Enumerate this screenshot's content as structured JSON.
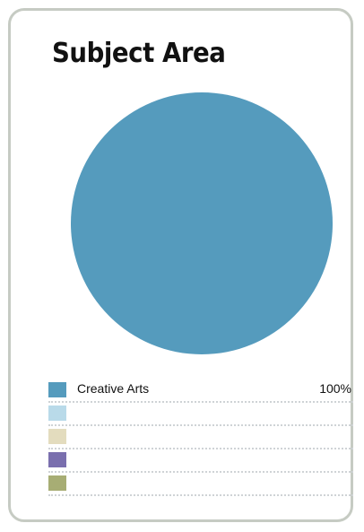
{
  "card": {
    "title": "Subject Area"
  },
  "colors": {
    "border": "#c6cbc3",
    "dots": "#cfd3d6"
  },
  "chart_data": {
    "type": "pie",
    "title": "Subject Area",
    "slices": [
      {
        "label": "Creative Arts",
        "value": 100,
        "value_label": "100%",
        "color": "#559bbd"
      }
    ],
    "legend": [
      {
        "label": "Creative Arts",
        "value_label": "100%",
        "color": "#559bbd"
      },
      {
        "label": "",
        "value_label": "",
        "color": "#b9dae9"
      },
      {
        "label": "",
        "value_label": "",
        "color": "#e3dcbe"
      },
      {
        "label": "",
        "value_label": "",
        "color": "#7a6fae"
      },
      {
        "label": "",
        "value_label": "",
        "color": "#a7ad74"
      }
    ],
    "legend_placement": "bottom"
  }
}
